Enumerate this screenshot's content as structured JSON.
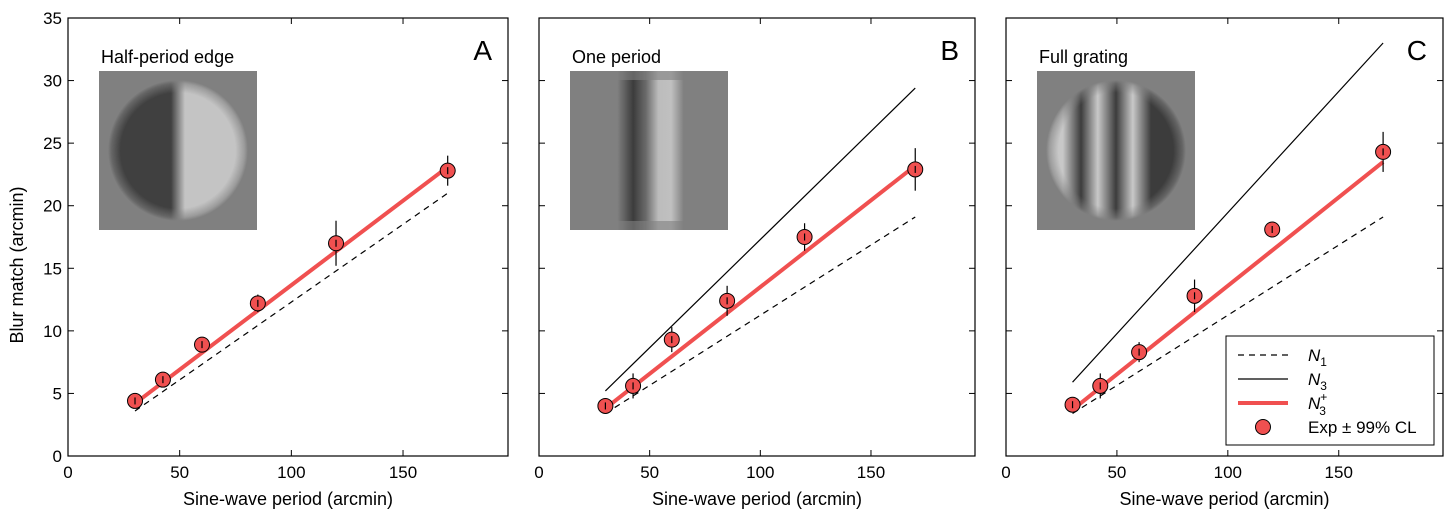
{
  "chart_data": {
    "type": "line",
    "ylabel": "Blur match (arcmin)",
    "xlabel": "Sine-wave period (arcmin)",
    "xlim": [
      0,
      197
    ],
    "ylim": [
      0,
      35
    ],
    "xticks": [
      0,
      50,
      100,
      150
    ],
    "yticks": [
      0,
      5,
      10,
      15,
      20,
      25,
      30,
      35
    ],
    "grid": false,
    "colors": {
      "n3_plus": "#f05050",
      "points": "#f05050",
      "n1": "#000000",
      "n3": "#000000"
    },
    "legend": {
      "placement": "bottom-right",
      "entries": [
        {
          "key": "n1",
          "name": "N",
          "sub": "1",
          "sup": "",
          "style": "dashed"
        },
        {
          "key": "n3",
          "name": "N",
          "sub": "3",
          "sup": "",
          "style": "solid-thin"
        },
        {
          "key": "n3_plus",
          "name": "N",
          "sub": "3",
          "sup": "+",
          "style": "solid-thick-red"
        },
        {
          "key": "exp",
          "name": "Exp ± 99% CL",
          "sub": "",
          "sup": "",
          "style": "marker"
        }
      ]
    },
    "panels": [
      {
        "letter": "A",
        "inset_title": "Half-period edge",
        "inset": "half-period-edge",
        "series": {
          "n1": {
            "x": [
              30,
              170
            ],
            "y": [
              3.6,
              21.0
            ]
          },
          "n3": null,
          "n3_plus": {
            "x": [
              30,
              170
            ],
            "y": [
              4.2,
              23.1
            ]
          },
          "exp": {
            "x": [
              30,
              42.5,
              60,
              85,
              120,
              170
            ],
            "y": [
              4.4,
              6.1,
              8.9,
              12.2,
              17.0,
              22.8
            ],
            "err": [
              0.3,
              0.4,
              0.5,
              0.7,
              1.8,
              1.2
            ]
          }
        }
      },
      {
        "letter": "B",
        "inset_title": "One period",
        "inset": "one-period",
        "series": {
          "n1": {
            "x": [
              30,
              170
            ],
            "y": [
              3.4,
              19.1
            ]
          },
          "n3": {
            "x": [
              30,
              170
            ],
            "y": [
              5.2,
              29.4
            ]
          },
          "n3_plus": {
            "x": [
              30,
              170
            ],
            "y": [
              3.8,
              23.2
            ]
          },
          "exp": {
            "x": [
              30,
              42.5,
              60,
              85,
              120,
              170
            ],
            "y": [
              4.0,
              5.6,
              9.3,
              12.4,
              17.5,
              22.9
            ],
            "err": [
              0.4,
              1.0,
              1.0,
              1.2,
              1.1,
              1.7
            ]
          }
        }
      },
      {
        "letter": "C",
        "inset_title": "Full grating",
        "inset": "full-grating",
        "series": {
          "n1": {
            "x": [
              30,
              170
            ],
            "y": [
              3.4,
              19.1
            ]
          },
          "n3": {
            "x": [
              30,
              170
            ],
            "y": [
              5.9,
              33.0
            ]
          },
          "n3_plus": {
            "x": [
              30,
              170
            ],
            "y": [
              3.7,
              23.5
            ]
          },
          "exp": {
            "x": [
              30,
              42.5,
              60,
              85,
              120,
              170
            ],
            "y": [
              4.1,
              5.6,
              8.3,
              12.8,
              18.1,
              24.3
            ],
            "err": [
              0.4,
              1.0,
              0.8,
              1.3,
              0.4,
              1.6
            ]
          }
        }
      }
    ]
  }
}
